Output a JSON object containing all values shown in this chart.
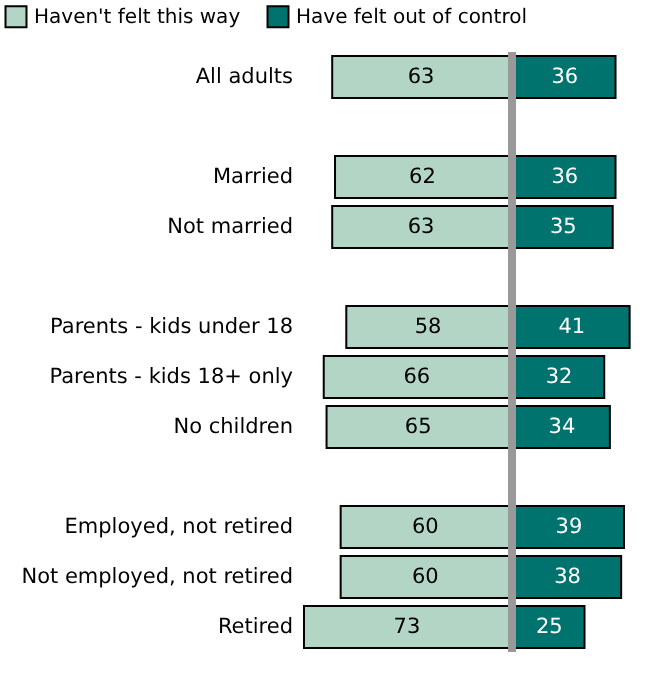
{
  "chart_data": [
    {
      "type": "bar",
      "orientation": "horizontal",
      "data_labels": true,
      "legend": "top left",
      "tick_labels": "y",
      "xlim": [
        73,
        0
      ],
      "categories": [
        "All adults",
        null,
        "Married",
        "Not married",
        null,
        "Parents - kids under 18",
        "Parents - kids 18+ only",
        "No children",
        null,
        "Employed, not retired",
        "Not employed, not retired",
        "Retired"
      ],
      "series": [
        {
          "name": "Haven't felt this way",
          "color": "#b3d5c5",
          "values": [
            63,
            null,
            62,
            63,
            null,
            58,
            66,
            65,
            null,
            60,
            60,
            73
          ]
        }
      ]
    },
    {
      "type": "bar",
      "orientation": "horizontal",
      "data_labels": true,
      "legend": "top left",
      "tick_labels": false,
      "xlim": [
        0,
        41
      ],
      "categories": [
        "All adults",
        null,
        "Married",
        "Not married",
        null,
        "Parents - kids under 18",
        "Parents - kids 18+ only",
        "No children",
        null,
        "Employed, not retired",
        "Not employed, not retired",
        "Retired"
      ],
      "series": [
        {
          "name": "Have felt out of control",
          "color": "#00736e",
          "values": [
            36,
            null,
            36,
            35,
            null,
            41,
            32,
            34,
            null,
            39,
            38,
            25
          ]
        }
      ]
    }
  ]
}
